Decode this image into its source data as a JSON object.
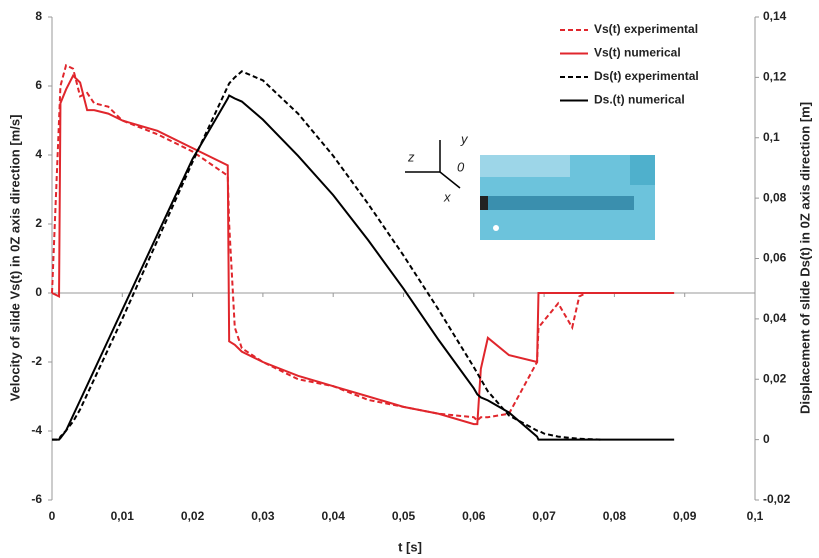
{
  "chart_data": {
    "type": "line",
    "x_label": "t [s]",
    "y_label": "Velocity of slide Vs(t)  in 0Z axis direction [m/s]",
    "y2_label": "Displacement of slide Ds(t)  in 0Z axis direction [m]",
    "annotations": [
      "y",
      "z",
      "0",
      "x"
    ],
    "x": [
      0,
      0.001,
      0.0012,
      0.002,
      0.003,
      0.004,
      0.005,
      0.006,
      0.008,
      0.01,
      0.015,
      0.02,
      0.025,
      0.0252,
      0.026,
      0.027,
      0.03,
      0.035,
      0.04,
      0.045,
      0.05,
      0.055,
      0.06,
      0.0605,
      0.061,
      0.062,
      0.065,
      0.069,
      0.0692,
      0.07,
      0.072,
      0.074,
      0.075,
      0.076,
      0.078,
      0.08,
      0.085,
      0.0885
    ],
    "series": [
      {
        "name": "Vs(t) experimental",
        "color": "#e0262c",
        "style": "dashed",
        "values": [
          0,
          5.0,
          6.0,
          6.6,
          6.5,
          5.7,
          5.8,
          5.5,
          5.4,
          5.0,
          4.6,
          4.1,
          3.4,
          2.0,
          -1.0,
          -1.6,
          -2.0,
          -2.5,
          -2.7,
          -3.1,
          -3.3,
          -3.5,
          -3.6,
          -3.7,
          -3.6,
          -3.6,
          -3.5,
          -2.0,
          -1.0,
          -0.8,
          -0.3,
          -1.0,
          -0.1,
          0,
          0,
          null,
          null,
          null
        ]
      },
      {
        "name": "Vs(t) numerical",
        "color": "#e0262c",
        "style": "solid",
        "values": [
          0,
          -0.1,
          5.5,
          5.9,
          6.3,
          6.1,
          5.3,
          5.3,
          5.2,
          5.0,
          4.7,
          4.2,
          3.7,
          -1.4,
          -1.5,
          -1.7,
          -2.0,
          -2.4,
          -2.7,
          -3.0,
          -3.3,
          -3.5,
          -3.8,
          -3.8,
          -2.2,
          -1.3,
          -1.8,
          -2.0,
          0,
          0,
          0,
          0,
          0,
          0,
          0,
          0,
          0,
          0
        ]
      },
      {
        "name": "Ds(t) experimental",
        "color": "#000000",
        "style": "dashed",
        "axis": "y2",
        "values": [
          0,
          0,
          0.001,
          0.003,
          0.006,
          0.01,
          0.015,
          0.02,
          0.03,
          0.04,
          0.066,
          0.092,
          0.117,
          0.118,
          0.12,
          0.122,
          0.119,
          0.108,
          0.094,
          0.078,
          0.061,
          0.043,
          0.024,
          0.022,
          0.02,
          0.016,
          0.008,
          0.003,
          0.003,
          0.002,
          0.001,
          0.0005,
          0.0003,
          0.0002,
          0,
          null,
          null,
          null
        ]
      },
      {
        "name": "Ds.(t) numerical",
        "color": "#000000",
        "style": "solid",
        "axis": "y2",
        "values": [
          0,
          0,
          0.0005,
          0.003,
          0.008,
          0.013,
          0.018,
          0.023,
          0.033,
          0.043,
          0.068,
          0.093,
          0.113,
          0.114,
          0.113,
          0.112,
          0.106,
          0.094,
          0.081,
          0.066,
          0.05,
          0.033,
          0.017,
          0.015,
          0.014,
          0.013,
          0.009,
          0.001,
          0,
          0,
          0,
          0,
          0,
          0,
          0,
          0,
          0,
          0
        ]
      }
    ],
    "xlim": [
      0,
      0.1
    ],
    "xticks": [
      0,
      {
        "value": 0.01,
        "label": "0,01"
      },
      {
        "value": 0.02,
        "label": "0,02"
      },
      {
        "value": 0.03,
        "label": "0,03"
      },
      {
        "value": 0.04,
        "label": "0,04"
      },
      {
        "value": 0.05,
        "label": "0,05"
      },
      {
        "value": 0.06,
        "label": "0,06"
      },
      {
        "value": 0.07,
        "label": "0,07"
      },
      {
        "value": 0.08,
        "label": "0,08"
      },
      {
        "value": 0.09,
        "label": "0,09"
      },
      {
        "value": 0.1,
        "label": "0,1"
      }
    ],
    "ylim": [
      -6,
      8
    ],
    "yticks": [
      -6,
      -4,
      -2,
      0,
      2,
      4,
      6,
      8
    ],
    "y2lim": [
      -0.02,
      0.14
    ],
    "y2ticks": [
      {
        "value": -0.02,
        "label": "-0,02"
      },
      0,
      {
        "value": 0.02,
        "label": "0,02"
      },
      {
        "value": 0.04,
        "label": "0,04"
      },
      {
        "value": 0.06,
        "label": "0,06"
      },
      {
        "value": 0.08,
        "label": "0,08"
      },
      {
        "value": 0.1,
        "label": "0,1"
      },
      {
        "value": 0.12,
        "label": "0,12"
      },
      {
        "value": 0.14,
        "label": "0,14"
      }
    ],
    "legend": "top-right"
  }
}
